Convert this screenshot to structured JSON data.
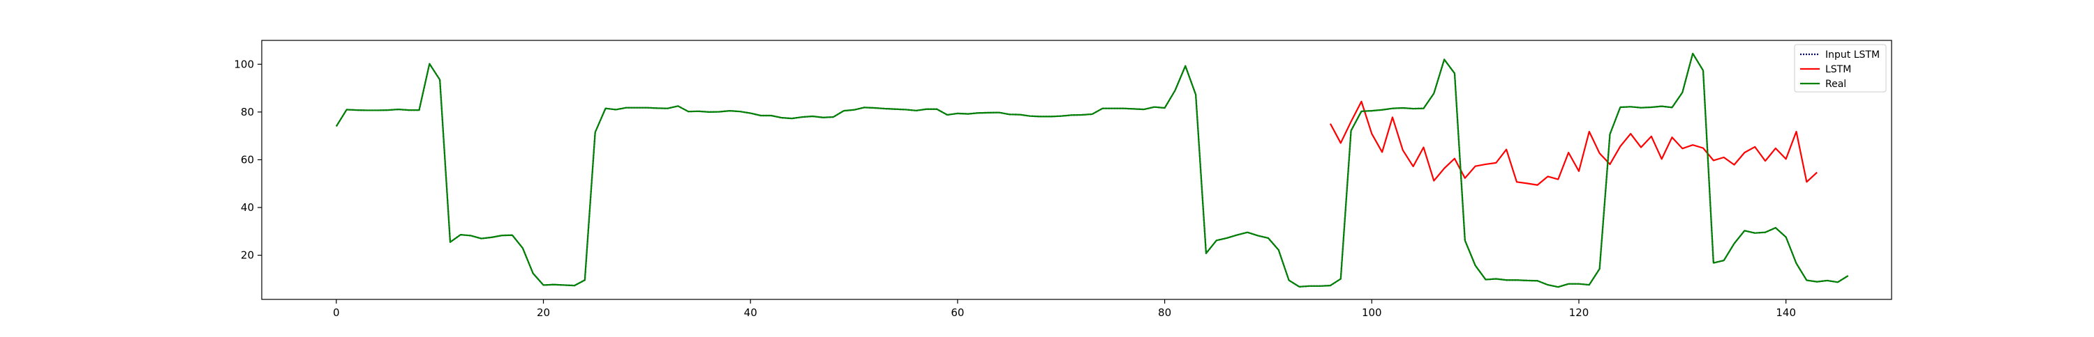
{
  "chart_data": {
    "type": "line",
    "title": "",
    "xlabel": "",
    "ylabel": "",
    "xlim": [
      -7.2,
      150.2
    ],
    "ylim": [
      1.5,
      110
    ],
    "x_ticks": [
      0,
      20,
      40,
      60,
      80,
      100,
      120,
      140
    ],
    "x_tick_labels": [
      "0",
      "20",
      "40",
      "60",
      "80",
      "100",
      "120",
      "140"
    ],
    "y_ticks": [
      20,
      40,
      60,
      80,
      100
    ],
    "y_tick_labels": [
      "20",
      "40",
      "60",
      "80",
      "100"
    ],
    "grid": false,
    "legend": {
      "placement": "upper-right",
      "entries": [
        "Input LSTM",
        "LSTM",
        "Real"
      ]
    },
    "series": [
      {
        "name": "Input LSTM",
        "color": "#00008b",
        "style": "dotted",
        "x_start": 0,
        "values": [
          74,
          81,
          80.8,
          80.7,
          80.7,
          80.8,
          81.1,
          80.8,
          80.8,
          100.2,
          93.5,
          25.5,
          28.6,
          28.2,
          27,
          27.5,
          28.3,
          28.4,
          23,
          12.4,
          7.5,
          7.7,
          7.5,
          7.3,
          9.6,
          71.5,
          81.5,
          81,
          81.8,
          81.8,
          81.8,
          81.6,
          81.5,
          82.5,
          80.2,
          80.3,
          80,
          80.1,
          80.5,
          80.2,
          79.5,
          78.5,
          78.5,
          77.6,
          77.3,
          77.9,
          78.2,
          77.7,
          77.9,
          80.5,
          80.9,
          81.9,
          81.7,
          81.4,
          81.2,
          81,
          80.6,
          81.2,
          81.2,
          78.8,
          79.4,
          79.2,
          79.6,
          79.7,
          79.8,
          79,
          78.9,
          78.3,
          78.1,
          78.1,
          78.3,
          78.7,
          78.8,
          79.1,
          81.5,
          81.5,
          81.5,
          81.3,
          81.1,
          82.1,
          81.7,
          89,
          99.3,
          87.3,
          20.8,
          26.2,
          27.2,
          28.5,
          29.6,
          28.2,
          27.2,
          22.2,
          9.5,
          6.8,
          7.1,
          7.1,
          7.3,
          10.1,
          72.2,
          80.3,
          80.5,
          80.9,
          81.5,
          81.7,
          81.4,
          81.5,
          87.8,
          102,
          96.2,
          26.2,
          15.7,
          9.8,
          10.1,
          9.6,
          9.6,
          9.4,
          9.3,
          7.6,
          6.7,
          8,
          8,
          7.6,
          14.3,
          70.7,
          82,
          82.2,
          81.8,
          82,
          82.4,
          81.9,
          88.2,
          104.5,
          97.4,
          16.8,
          17.8,
          24.9,
          30.3,
          29.3,
          29.6,
          31.5,
          27.6,
          16.6,
          9.5,
          8.9,
          9.4,
          8.7,
          11.4
        ]
      },
      {
        "name": "LSTM",
        "color": "#ff0000",
        "style": "solid",
        "x_start": 96,
        "values": [
          75.1,
          67,
          76,
          84.4,
          70.9,
          63.2,
          77.8,
          64,
          57.2,
          65.2,
          51.2,
          56.4,
          60.5,
          52.3,
          57.3,
          58.1,
          58.7,
          64.3,
          50.7,
          50.1,
          49.4,
          53,
          51.8,
          63,
          55.2,
          71.8,
          62.7,
          58.1,
          65.6,
          70.9,
          65.2,
          69.8,
          60.3,
          69.4,
          64.7,
          66.2,
          64.9,
          59.7,
          61,
          57.9,
          63,
          65.4,
          59.5,
          64.8,
          60.3,
          71.8,
          50.7,
          54.7
        ]
      },
      {
        "name": "Real",
        "color": "#008000",
        "style": "solid",
        "x_start": 0,
        "values": [
          74,
          81,
          80.8,
          80.7,
          80.7,
          80.8,
          81.1,
          80.8,
          80.8,
          100.2,
          93.5,
          25.5,
          28.6,
          28.2,
          27,
          27.5,
          28.3,
          28.4,
          23,
          12.4,
          7.5,
          7.7,
          7.5,
          7.3,
          9.6,
          71.5,
          81.5,
          81,
          81.8,
          81.8,
          81.8,
          81.6,
          81.5,
          82.5,
          80.2,
          80.3,
          80,
          80.1,
          80.5,
          80.2,
          79.5,
          78.5,
          78.5,
          77.6,
          77.3,
          77.9,
          78.2,
          77.7,
          77.9,
          80.5,
          80.9,
          81.9,
          81.7,
          81.4,
          81.2,
          81,
          80.6,
          81.2,
          81.2,
          78.8,
          79.4,
          79.2,
          79.6,
          79.7,
          79.8,
          79,
          78.9,
          78.3,
          78.1,
          78.1,
          78.3,
          78.7,
          78.8,
          79.1,
          81.5,
          81.5,
          81.5,
          81.3,
          81.1,
          82.1,
          81.7,
          89,
          99.3,
          87.3,
          20.8,
          26.2,
          27.2,
          28.5,
          29.6,
          28.2,
          27.2,
          22.2,
          9.5,
          6.8,
          7.1,
          7.1,
          7.3,
          10.1,
          72.2,
          80.3,
          80.5,
          80.9,
          81.5,
          81.7,
          81.4,
          81.5,
          87.8,
          102,
          96.2,
          26.2,
          15.7,
          9.8,
          10.1,
          9.6,
          9.6,
          9.4,
          9.3,
          7.6,
          6.7,
          8,
          8,
          7.6,
          14.3,
          70.7,
          82,
          82.2,
          81.8,
          82,
          82.4,
          81.9,
          88.2,
          104.5,
          97.4,
          16.8,
          17.8,
          24.9,
          30.3,
          29.3,
          29.6,
          31.5,
          27.6,
          16.6,
          9.5,
          8.9,
          9.4,
          8.7,
          11.4
        ]
      }
    ]
  }
}
